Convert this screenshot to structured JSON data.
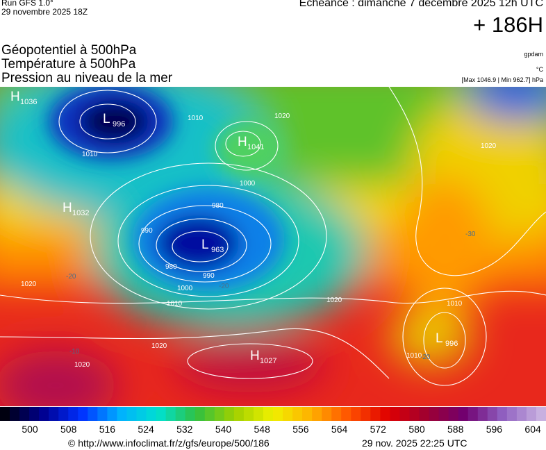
{
  "header": {
    "run": "Run GFS 1.0°",
    "run_date": "29 novembre 2025 18Z",
    "valid": "Echéance : dimanche 7 décembre 2025 12h UTC",
    "lead": "+ 186H"
  },
  "fields": [
    "Géopotentiel à 500hPa",
    "Température à 500hPa",
    "Pression au niveau de la mer"
  ],
  "units": [
    "gpdam",
    "°C",
    "[Max 1046.9 | Min 962.7] hPa"
  ],
  "centers": [
    {
      "kind": "H",
      "value": "1036"
    },
    {
      "kind": "L",
      "value": "996"
    },
    {
      "kind": "H",
      "value": "1041"
    },
    {
      "kind": "H",
      "value": "1032"
    },
    {
      "kind": "L",
      "value": "963"
    },
    {
      "kind": "H",
      "value": "1027"
    },
    {
      "kind": "L",
      "value": "996"
    }
  ],
  "isobar_labels": [
    "1010",
    "1010",
    "1020",
    "1000",
    "980",
    "990",
    "980",
    "990",
    "1000",
    "1010",
    "1020",
    "1020",
    "1020",
    "1020",
    "1010",
    "1020",
    "1010"
  ],
  "temperature_labels": [
    "-20",
    "-20",
    "-30",
    "-20",
    "-10"
  ],
  "colorbar_ticks": [
    500,
    508,
    516,
    524,
    532,
    540,
    548,
    556,
    564,
    572,
    580,
    588,
    596,
    604
  ],
  "footer": {
    "source": "© http://www.infoclimat.fr/z/gfs/europe/500/186",
    "generated": "29 nov. 2025 22:25 UTC"
  }
}
